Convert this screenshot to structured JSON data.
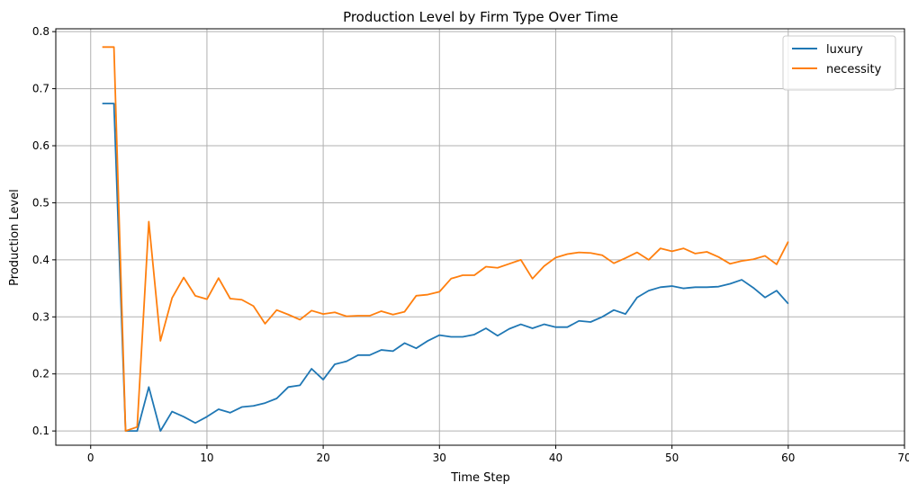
{
  "chart_data": {
    "type": "line",
    "title": "Production Level by Firm Type Over Time",
    "xlabel": "Time Step",
    "ylabel": "Production Level",
    "xlim": [
      -3,
      70
    ],
    "ylim": [
      0.075,
      0.805
    ],
    "xticks": [
      0,
      10,
      20,
      30,
      40,
      50,
      60,
      70
    ],
    "yticks": [
      0.1,
      0.2,
      0.3,
      0.4,
      0.5,
      0.6,
      0.7,
      0.8
    ],
    "grid": true,
    "legend_position": "top-right",
    "x": [
      1,
      2,
      3,
      4,
      5,
      6,
      7,
      8,
      9,
      10,
      11,
      12,
      13,
      14,
      15,
      16,
      17,
      18,
      19,
      20,
      21,
      22,
      23,
      24,
      25,
      26,
      27,
      28,
      29,
      30,
      31,
      32,
      33,
      34,
      35,
      36,
      37,
      38,
      39,
      40,
      41,
      42,
      43,
      44,
      45,
      46,
      47,
      48,
      49,
      50,
      51,
      52,
      53,
      54,
      55,
      56,
      57,
      58,
      59,
      60
    ],
    "series": [
      {
        "name": "luxury",
        "color": "#1f77b4",
        "values": [
          0.674,
          0.674,
          0.1,
          0.1,
          0.177,
          0.1,
          0.134,
          0.125,
          0.114,
          0.125,
          0.138,
          0.132,
          0.142,
          0.144,
          0.149,
          0.157,
          0.177,
          0.18,
          0.209,
          0.19,
          0.217,
          0.222,
          0.233,
          0.233,
          0.242,
          0.24,
          0.254,
          0.245,
          0.258,
          0.268,
          0.265,
          0.265,
          0.269,
          0.28,
          0.267,
          0.279,
          0.287,
          0.28,
          0.287,
          0.282,
          0.282,
          0.293,
          0.291,
          0.3,
          0.312,
          0.305,
          0.334,
          0.346,
          0.352,
          0.354,
          0.35,
          0.352,
          0.352,
          0.353,
          0.358,
          0.365,
          0.351,
          0.334,
          0.346,
          0.323
        ]
      },
      {
        "name": "necessity",
        "color": "#ff7f0e",
        "values": [
          0.773,
          0.773,
          0.1,
          0.107,
          0.467,
          0.258,
          0.333,
          0.369,
          0.337,
          0.331,
          0.368,
          0.332,
          0.33,
          0.319,
          0.288,
          0.312,
          0.304,
          0.295,
          0.311,
          0.305,
          0.308,
          0.301,
          0.302,
          0.302,
          0.31,
          0.304,
          0.309,
          0.337,
          0.339,
          0.344,
          0.367,
          0.373,
          0.373,
          0.388,
          0.386,
          0.393,
          0.4,
          0.367,
          0.389,
          0.404,
          0.41,
          0.413,
          0.412,
          0.408,
          0.394,
          0.403,
          0.413,
          0.4,
          0.42,
          0.415,
          0.42,
          0.411,
          0.414,
          0.405,
          0.393,
          0.398,
          0.401,
          0.407,
          0.392,
          0.432
        ]
      }
    ]
  }
}
